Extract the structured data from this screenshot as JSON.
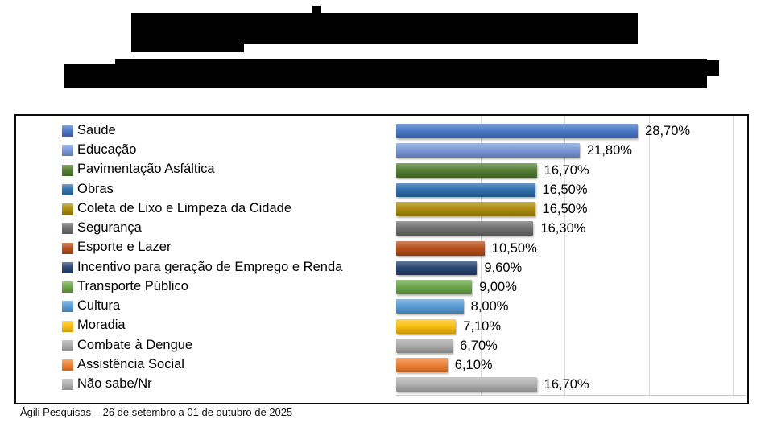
{
  "title": {
    "redacted": true,
    "note": "two-line chart title blacked out"
  },
  "chart_data": {
    "type": "bar",
    "orientation": "horizontal",
    "title": "",
    "xlabel": "",
    "ylabel": "",
    "grid": true,
    "legend_position": "left-category-swatches",
    "xlim": [
      0,
      41.5
    ],
    "gridline_values": [
      10,
      20,
      30,
      40
    ],
    "categories": [
      "Saúde",
      "Educação",
      "Pavimentação Asfáltica",
      "Obras",
      "Coleta de Lixo e Limpeza da Cidade",
      "Segurança",
      "Esporte e Lazer",
      "Incentivo para geração de Emprego e Renda",
      "Transporte Público",
      "Cultura",
      "Moradia",
      "Combate à Dengue",
      "Assistência Social",
      "Não sabe/Nr"
    ],
    "values": [
      28.7,
      21.8,
      16.7,
      16.5,
      16.5,
      16.3,
      10.5,
      9.6,
      9.0,
      8.0,
      7.1,
      6.7,
      6.1,
      16.7
    ],
    "value_labels": [
      "28,70%",
      "21,80%",
      "16,70%",
      "16,50%",
      "16,50%",
      "16,30%",
      "10,50%",
      "9,60%",
      "9,00%",
      "8,00%",
      "7,10%",
      "6,70%",
      "6,10%",
      "16,70%"
    ],
    "colors": [
      "#4472C4",
      "#7495D6",
      "#4E7A2D",
      "#2A6CA9",
      "#A98908",
      "#6B6B6B",
      "#B54A14",
      "#24406E",
      "#67A344",
      "#5499D4",
      "#FBBE0B",
      "#A8A8A8",
      "#EE7D2E",
      "#AFAFAF"
    ],
    "gridline_color": "#D9D9D9",
    "frame_border_color": "#0B0B0B"
  },
  "footer": {
    "source_label": "Ágili Pesquisas – 26 de setembro a 01 de outubro de 2025"
  }
}
